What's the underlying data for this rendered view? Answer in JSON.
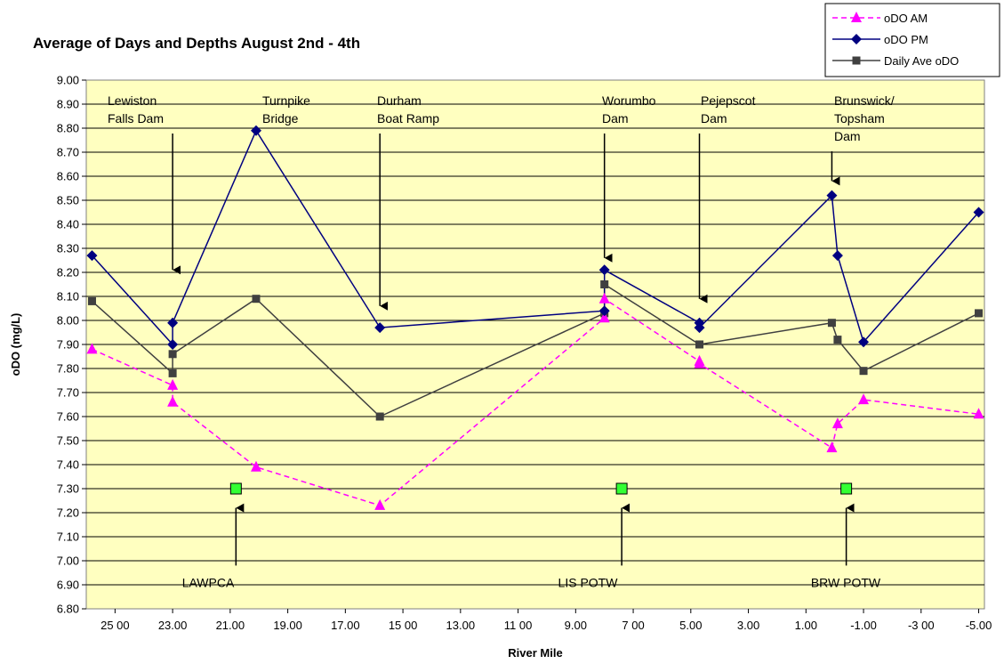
{
  "chart_data": {
    "type": "line",
    "title": "Average of Days and Depths August 2nd - 4th",
    "xlabel": "River Mile",
    "ylabel": "oDO (mg/L)",
    "xlim": [
      26.0,
      -5.2
    ],
    "ylim": [
      6.8,
      9.0
    ],
    "y_step": 0.1,
    "x_ticks": [
      25,
      23,
      21,
      19,
      17,
      15,
      13,
      11,
      9,
      7,
      5,
      3,
      1,
      -1,
      -3,
      -5
    ],
    "x_tick_labels": [
      "25 00",
      "23.00",
      "21.00",
      "19.00",
      "17.00",
      "15 00",
      "13.00",
      "11 00",
      "9.00",
      "7 00",
      "5.00",
      "3.00",
      "1.00",
      "-1.00",
      "-3 00",
      "-5.00"
    ],
    "y_tick_labels": [
      "9.00",
      "8.90",
      "8.80",
      "8.70",
      "8.60",
      "8.50",
      "8.40",
      "8.30",
      "8.20",
      "8.10",
      "8.00",
      "7.90",
      "7.80",
      "7.70",
      "7.60",
      "7.50",
      "7.40",
      "7.30",
      "7.20",
      "7.10",
      "7.00",
      "6.90",
      "6.80"
    ],
    "grid": "horizontal",
    "plot_background": "#ffffc0",
    "legend_position": "top-right",
    "series": [
      {
        "name": "oDO AM",
        "color": "#ff00ff",
        "marker": "triangle",
        "dash": "dashed",
        "x": [
          25.8,
          23.0,
          23.0,
          20.1,
          15.8,
          8.0,
          8.0,
          4.7,
          4.7,
          0.1,
          -0.1,
          -1.0,
          -5.0
        ],
        "y": [
          7.88,
          7.73,
          7.66,
          7.39,
          7.23,
          8.01,
          8.09,
          7.83,
          7.82,
          7.47,
          7.57,
          7.67,
          7.61
        ]
      },
      {
        "name": "oDO PM",
        "color": "#000080",
        "marker": "diamond",
        "dash": "solid",
        "x": [
          25.8,
          23.0,
          23.0,
          20.1,
          15.8,
          8.0,
          8.0,
          4.7,
          4.7,
          0.1,
          -0.1,
          -1.0,
          -5.0
        ],
        "y": [
          8.27,
          7.9,
          7.99,
          8.79,
          7.97,
          8.04,
          8.21,
          7.99,
          7.97,
          8.52,
          8.27,
          7.91,
          8.45
        ]
      },
      {
        "name": "Daily Ave oDO",
        "color": "#404040",
        "marker": "square",
        "dash": "solid",
        "x": [
          25.8,
          23.0,
          23.0,
          20.1,
          15.8,
          8.0,
          8.0,
          4.7,
          4.7,
          0.1,
          -0.1,
          -1.0,
          -5.0
        ],
        "y": [
          8.08,
          7.78,
          7.86,
          8.09,
          7.6,
          8.03,
          8.15,
          7.9,
          7.9,
          7.99,
          7.92,
          7.79,
          8.03
        ]
      }
    ],
    "discharge_points": {
      "color": "#33ff33",
      "x": [
        20.8,
        7.4,
        -0.4
      ],
      "y": [
        7.3,
        7.3,
        7.3
      ]
    },
    "top_annotations": [
      {
        "lines": [
          "Lewiston",
          "Falls Dam"
        ],
        "arrow_x": 23.0,
        "arrow_to_y": 8.21
      },
      {
        "lines": [
          "Turnpike",
          "Bridge"
        ],
        "arrow_x": null,
        "arrow_to_y": null
      },
      {
        "lines": [
          "Durham",
          "Boat Ramp"
        ],
        "arrow_x": 15.8,
        "arrow_to_y": 8.06
      },
      {
        "lines": [
          "Worumbo",
          "Dam"
        ],
        "arrow_x": 8.0,
        "arrow_to_y": 8.26
      },
      {
        "lines": [
          "Pejepscot",
          "Dam"
        ],
        "arrow_x": 4.7,
        "arrow_to_y": 8.09
      },
      {
        "lines": [
          "Brunswick/",
          "Topsham",
          "Dam"
        ],
        "arrow_x": 0.1,
        "arrow_to_y": 8.58
      }
    ],
    "bottom_annotations": [
      {
        "label": "LAWPCA",
        "arrow_x": 20.8
      },
      {
        "label": "LIS POTW",
        "arrow_x": 7.4
      },
      {
        "label": "BRW POTW",
        "arrow_x": -0.4
      }
    ]
  }
}
